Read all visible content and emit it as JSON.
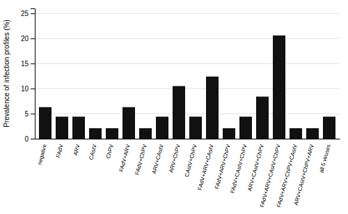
{
  "chart_data": {
    "type": "bar",
    "categories": [
      "negative",
      "FAdV",
      "ARV",
      "CAstV",
      "ChPV",
      "FAdV+ARV",
      "FAdV+ChPV",
      "ARV+CAstV",
      "ARV+ChPV",
      "CAstV+ChPV",
      "FAdV+ARV+CAstV",
      "FAdV+ARV+ChPV",
      "FAdV+CAstV+ChPV",
      "ARV+CAstV+ChPV",
      "FAdV+ARV+CAstV+ChPV",
      "FAdV+ARV+ChPV+CAstV",
      "ARV+CAstV+ChPV+ARV",
      "all 5 viruses"
    ],
    "values": [
      6.3,
      4.4,
      4.4,
      2.1,
      2.1,
      6.3,
      2.1,
      4.4,
      10.5,
      4.4,
      12.4,
      2.1,
      4.4,
      8.4,
      20.6,
      2.1,
      2.1,
      4.4
    ],
    "color": "#111111",
    "ylabel": "Prevalence of infection profiles (%)",
    "ylim": [
      0,
      26
    ],
    "yticks": [
      0,
      5,
      10,
      15,
      20,
      25
    ],
    "grid": true
  }
}
